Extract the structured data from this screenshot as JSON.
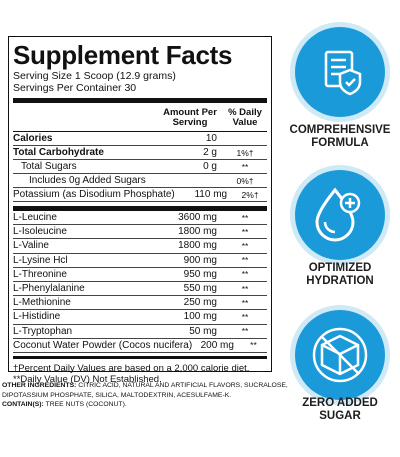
{
  "label": {
    "title": "Supplement Facts",
    "serving_size": "Serving Size 1 Scoop (12.9 grams)",
    "servings": "Servings Per Container 30",
    "columns": [
      "Amount Per Serving",
      "% Daily Value"
    ],
    "sections": [
      {
        "rows": [
          {
            "name": "Calories",
            "amount": "10"
          },
          {
            "name": "Total Carbohydrate",
            "amount": "2 g",
            "dv": "1%†",
            "sub_rows": [
              {
                "name": "Total Sugars",
                "amount": "0 g",
                "dv": "**",
                "sub_rows": [
                  {
                    "name": "Includes 0g Added Sugars",
                    "dv": "0%†"
                  }
                ]
              }
            ]
          },
          {
            "name": "Potassium (as Disodium Phosphate)",
            "amount": "110 mg",
            "dv": "2%†"
          }
        ]
      },
      {
        "rows": [
          {
            "name": "L-Leucine",
            "amount": "3600 mg",
            "dv": "**"
          },
          {
            "name": "L-Isoleucine",
            "amount": "1800 mg",
            "dv": "**"
          },
          {
            "name": "L-Valine",
            "amount": "1800 mg",
            "dv": "**"
          },
          {
            "name": "L-Lysine Hcl",
            "amount": "900 mg",
            "dv": "**"
          },
          {
            "name": "L-Threonine",
            "amount": "950 mg",
            "dv": "**"
          },
          {
            "name": "L-Phenylalanine",
            "amount": "550 mg",
            "dv": "**"
          },
          {
            "name": "L-Methionine",
            "amount": "250 mg",
            "dv": "**"
          },
          {
            "name": "L-Histidine",
            "amount": "100 mg",
            "dv": "**"
          },
          {
            "name": "L-Tryptophan",
            "amount": "50 mg",
            "dv": "**"
          },
          {
            "name": "Coconut Water Powder (Cocos nucifera)",
            "amount": "200 mg",
            "dv": "**"
          }
        ]
      }
    ],
    "footnotes": [
      "†Percent Daily Values are based on a 2,000 calorie diet.",
      "**Daily Value (DV) Not Established."
    ]
  },
  "other_ingredients": {
    "label": "OTHER INGREDIENTS:",
    "text": "CITRIC ACID, NATURAL AND ARTIFICIAL FLAVORS, SUCRALOSE, DIPOTASSIUM PHOSPHATE, SILICA, MALTODEXTRIN, ACESULFAME-K."
  },
  "contains": {
    "label": "CONTAIN(S):",
    "text": "TREE NUTS (COCONUT)."
  },
  "badges": [
    "COMPREHENSIVE FORMULA",
    "OPTIMIZED HYDRATION",
    "ZERO ADDED SUGAR"
  ]
}
